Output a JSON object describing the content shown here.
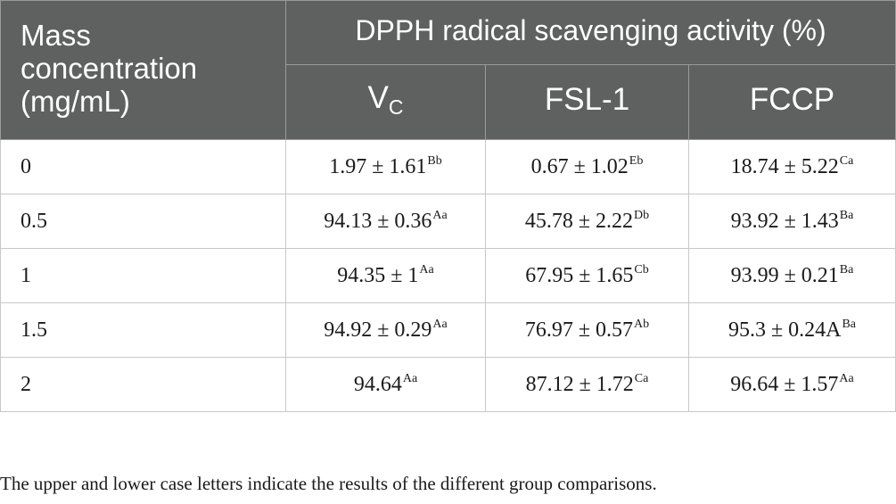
{
  "table": {
    "header": {
      "mass_label": [
        "Mass",
        "concentration",
        "(mg/mL)"
      ],
      "group_label": "DPPH radical scavenging activity (%)",
      "columns": [
        {
          "main": "V",
          "sub": "C"
        },
        {
          "main": "FSL-1",
          "sub": ""
        },
        {
          "main": "FCCP",
          "sub": ""
        }
      ]
    },
    "rows": [
      {
        "conc": "0",
        "cells": [
          {
            "value": "1.97 ± 1.61",
            "sup": "Bb"
          },
          {
            "value": "0.67 ± 1.02",
            "sup": "Eb"
          },
          {
            "value": "18.74 ± 5.22",
            "sup": "Ca"
          }
        ]
      },
      {
        "conc": "0.5",
        "cells": [
          {
            "value": "94.13 ± 0.36",
            "sup": "Aa"
          },
          {
            "value": "45.78 ± 2.22",
            "sup": "Db"
          },
          {
            "value": "93.92 ± 1.43",
            "sup": "Ba"
          }
        ]
      },
      {
        "conc": "1",
        "cells": [
          {
            "value": "94.35 ± 1",
            "sup": "Aa"
          },
          {
            "value": "67.95 ± 1.65",
            "sup": "Cb"
          },
          {
            "value": "93.99 ± 0.21",
            "sup": "Ba"
          }
        ]
      },
      {
        "conc": "1.5",
        "cells": [
          {
            "value": "94.92 ± 0.29",
            "sup": "Aa"
          },
          {
            "value": "76.97 ± 0.57",
            "sup": "Ab"
          },
          {
            "value": "95.3 ± 0.24A",
            "sup": "Ba"
          }
        ]
      },
      {
        "conc": "2",
        "cells": [
          {
            "value": "94.64",
            "sup": "Aa"
          },
          {
            "value": "87.12 ± 1.72",
            "sup": "Ca"
          },
          {
            "value": "96.64 ± 1.57",
            "sup": "Aa"
          }
        ]
      }
    ]
  },
  "footnote": "The upper and lower case letters indicate the results of the different group comparisons.",
  "colors": {
    "header_bg": "#5f6060",
    "header_text": "#ffffff",
    "body_text": "#1a1a1a",
    "grid": "#c8c8c8"
  }
}
